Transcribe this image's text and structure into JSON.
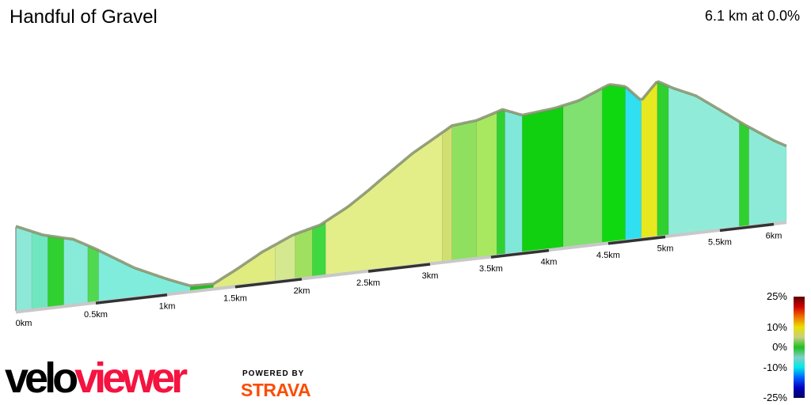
{
  "title": "Handful of Gravel",
  "summary": "6.1 km at 0.0%",
  "brand": {
    "logo_part1": "velo",
    "logo_part2": "viewer",
    "powered_by": "POWERED BY",
    "strava": "STRAVA"
  },
  "legend": {
    "labels": [
      "25%",
      "10%",
      "0%",
      "-10%",
      "-25%"
    ],
    "colors": [
      "#5a0000",
      "#d00000",
      "#f07000",
      "#e8e000",
      "#c8d080",
      "#20c020",
      "#80d0c8",
      "#00e8e8",
      "#0060ff",
      "#0000c0",
      "#000060"
    ]
  },
  "chart_data": {
    "type": "area",
    "title": "Handful of Gravel",
    "xlabel": "",
    "ylabel": "",
    "xlim": [
      0,
      6.1
    ],
    "x_ticks": [
      "0km",
      "0.5km",
      "1km",
      "1.5km",
      "2km",
      "2.5km",
      "3km",
      "3.5km",
      "4km",
      "4.5km",
      "5km",
      "5.5km",
      "6km"
    ],
    "profile": [
      [
        0,
        106
      ],
      [
        0.17,
        91
      ],
      [
        0.36,
        81
      ],
      [
        0.55,
        60
      ],
      [
        0.77,
        36
      ],
      [
        1.0,
        17
      ],
      [
        1.17,
        5
      ],
      [
        1.34,
        4
      ],
      [
        1.52,
        20
      ],
      [
        1.7,
        37
      ],
      [
        1.93,
        54
      ],
      [
        2.14,
        63
      ],
      [
        2.35,
        82
      ],
      [
        2.6,
        111
      ],
      [
        2.86,
        140
      ],
      [
        3.18,
        169
      ],
      [
        3.38,
        172
      ],
      [
        3.6,
        182
      ],
      [
        3.77,
        172
      ],
      [
        4.05,
        176
      ],
      [
        4.25,
        182
      ],
      [
        4.51,
        198
      ],
      [
        4.65,
        193
      ],
      [
        4.79,
        173
      ],
      [
        4.93,
        195
      ],
      [
        5.07,
        184
      ],
      [
        5.28,
        171
      ],
      [
        5.72,
        128
      ],
      [
        6.1,
        94
      ]
    ],
    "gradient_segments": [
      [
        0,
        0.1,
        "#8ee8d8"
      ],
      [
        0.1,
        0.2,
        "#70e6c0"
      ],
      [
        0.2,
        0.3,
        "#30d030"
      ],
      [
        0.3,
        0.45,
        "#88ead8"
      ],
      [
        0.45,
        0.52,
        "#50d850"
      ],
      [
        0.52,
        1.17,
        "#80ecdc"
      ],
      [
        1.17,
        1.34,
        "#20c020"
      ],
      [
        1.34,
        1.8,
        "#e0eb80"
      ],
      [
        1.8,
        1.95,
        "#d4e890"
      ],
      [
        1.95,
        2.08,
        "#a0e060"
      ],
      [
        2.08,
        2.18,
        "#40d840"
      ],
      [
        2.18,
        3.1,
        "#e4ee88"
      ],
      [
        3.1,
        3.18,
        "#d0e070"
      ],
      [
        3.18,
        3.38,
        "#90e060"
      ],
      [
        3.38,
        3.55,
        "#a8e860"
      ],
      [
        3.55,
        3.62,
        "#30d030"
      ],
      [
        3.62,
        3.77,
        "#80e8d8"
      ],
      [
        3.77,
        4.12,
        "#10d010"
      ],
      [
        4.12,
        4.45,
        "#80e070"
      ],
      [
        4.45,
        4.65,
        "#10d810"
      ],
      [
        4.65,
        4.79,
        "#30e0f0"
      ],
      [
        4.79,
        4.93,
        "#e8e820"
      ],
      [
        4.93,
        5.03,
        "#30d030"
      ],
      [
        5.03,
        5.68,
        "#90ecd8"
      ],
      [
        5.68,
        5.77,
        "#30d030"
      ],
      [
        5.77,
        6.1,
        "#8eead8"
      ]
    ]
  }
}
